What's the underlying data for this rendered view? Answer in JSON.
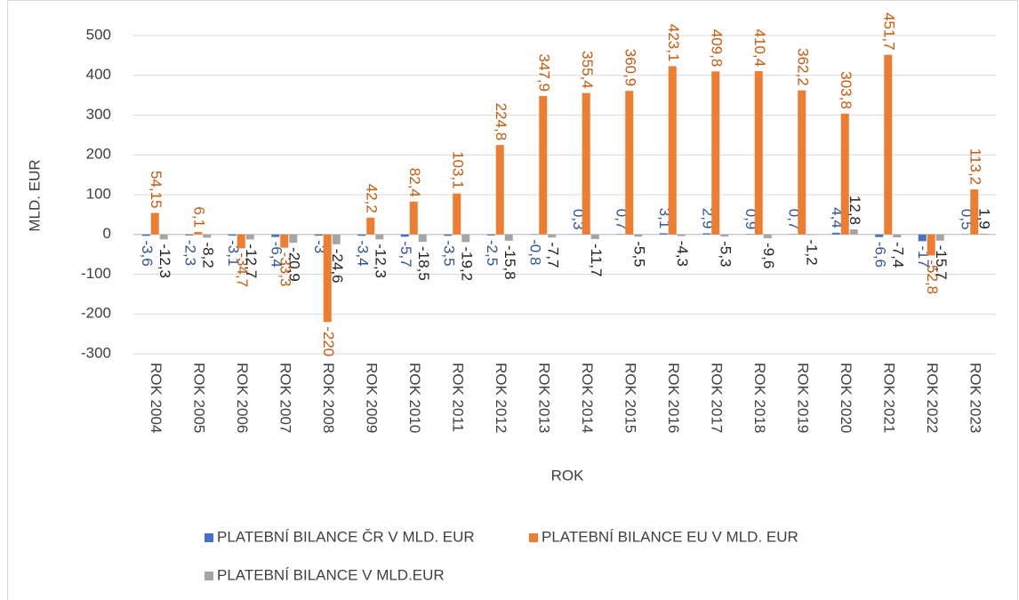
{
  "chart_data": {
    "type": "bar",
    "categories": [
      "ROK 2004",
      "ROK 2005",
      "ROK 2006",
      "ROK 2007",
      "ROK 2008",
      "ROK 2009",
      "ROK 2010",
      "ROK 2011",
      "ROK 2012",
      "ROK 2013",
      "ROK 2014",
      "ROK 2015",
      "ROK 2016",
      "ROK 2017",
      "ROK 2018",
      "ROK 2019",
      "ROK 2020",
      "ROK 2021",
      "ROK 2022",
      "ROK 2023"
    ],
    "series": [
      {
        "name": "PLATEBNÍ BILANCE ČR V MLD. EUR",
        "color": "#4472c4",
        "label_color": "#2f5597",
        "values": [
          -3.6,
          -2.3,
          -3.1,
          -6.4,
          -3,
          -3.4,
          -5.7,
          -3.5,
          -2.5,
          -0.8,
          0.3,
          0.7,
          3.1,
          2.9,
          0.9,
          0.7,
          4.4,
          -6.6,
          -17,
          0.5
        ],
        "value_labels": [
          "-3,6",
          "-2,3",
          "-3,1",
          "-6,4",
          "-3",
          "-3,4",
          "-5,7",
          "-3,5",
          "-2,5",
          "-0,8",
          "0,3",
          "0,7",
          "3,1",
          "2,9",
          "0,9",
          "0,7",
          "4,4",
          "-6,6",
          "-17",
          "0,5"
        ]
      },
      {
        "name": "PLATEBNÍ BILANCE EU V MLD. EUR",
        "color": "#ed7d31",
        "label_color": "#c55a11",
        "values": [
          54.15,
          6.1,
          -34.7,
          -33.3,
          -220,
          42.2,
          82.4,
          103.1,
          224.8,
          347.9,
          355.4,
          360.9,
          423.1,
          409.8,
          410.4,
          362.2,
          303.8,
          451.7,
          -52.8,
          113.2
        ],
        "value_labels": [
          "54,15",
          "6,1",
          "-34,7",
          "-33,3",
          "-220",
          "42,2",
          "82,4",
          "103,1",
          "224,8",
          "347,9",
          "355,4",
          "360,9",
          "423,1",
          "409,8",
          "410,4",
          "362,2",
          "303,8",
          "451,7",
          "-52,8",
          "113,2"
        ]
      },
      {
        "name": "PLATEBNÍ BILANCE V MLD.EUR",
        "color": "#a5a5a5",
        "label_color": "#222222",
        "values": [
          -12.3,
          -8.2,
          -12.7,
          -20.9,
          -24.6,
          -12.3,
          -18.5,
          -19.2,
          -15.8,
          -7.7,
          -11.7,
          -5.5,
          -4.3,
          -5.3,
          -9.6,
          -1.2,
          12.8,
          -7.4,
          -15.7,
          1.9
        ],
        "value_labels": [
          "-12,3",
          "-8,2",
          "-12,7",
          "-20,9",
          "-24,6",
          "-12,3",
          "-18,5",
          "-19,2",
          "-15,8",
          "-7,7",
          "-11,7",
          "-5,5",
          "-4,3",
          "-5,3",
          "-9,6",
          "-1,2",
          "12,8",
          "-7,4",
          "-15,7",
          "1,9"
        ]
      }
    ],
    "x_label": "ROK",
    "y_label": "MLD. EUR",
    "ylim": [
      -300,
      500
    ],
    "yticks": [
      -300,
      -200,
      -100,
      0,
      100,
      200,
      300,
      400,
      500
    ],
    "grid": true
  }
}
